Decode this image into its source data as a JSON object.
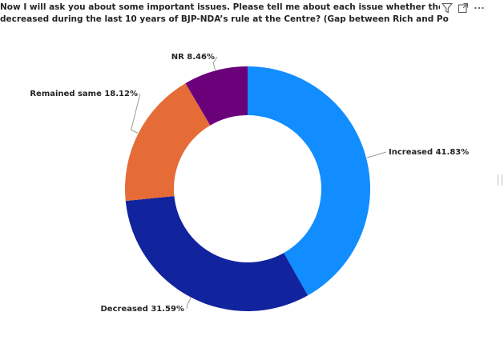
{
  "title": {
    "line1": "Now I will ask you about some important issues. Please tell me about each issue whether they have in",
    "line2": "decreased during the last 10 years of BJP-NDA’s rule at the Centre? (Gap between Rich and Poor)"
  },
  "toolbar": {
    "filter_icon": "filter-icon",
    "focus_icon": "focus-mode-icon",
    "more_icon": "more-options-icon"
  },
  "chart_data": {
    "type": "pie",
    "variant": "donut",
    "slices": [
      {
        "label": "Increased",
        "value": 41.83,
        "display": "Increased 41.83%",
        "color": "#118dff"
      },
      {
        "label": "Decreased",
        "value": 31.59,
        "display": "Decreased 31.59%",
        "color": "#12239e"
      },
      {
        "label": "Remained same",
        "value": 18.12,
        "display": "Remained same 18.12%",
        "color": "#e66c37"
      },
      {
        "label": "NR",
        "value": 8.46,
        "display": "NR 8.46%",
        "color": "#6b007b"
      }
    ],
    "start_angle_deg": 0,
    "direction": "clockwise",
    "legend": "none",
    "data_labels": "outside"
  }
}
